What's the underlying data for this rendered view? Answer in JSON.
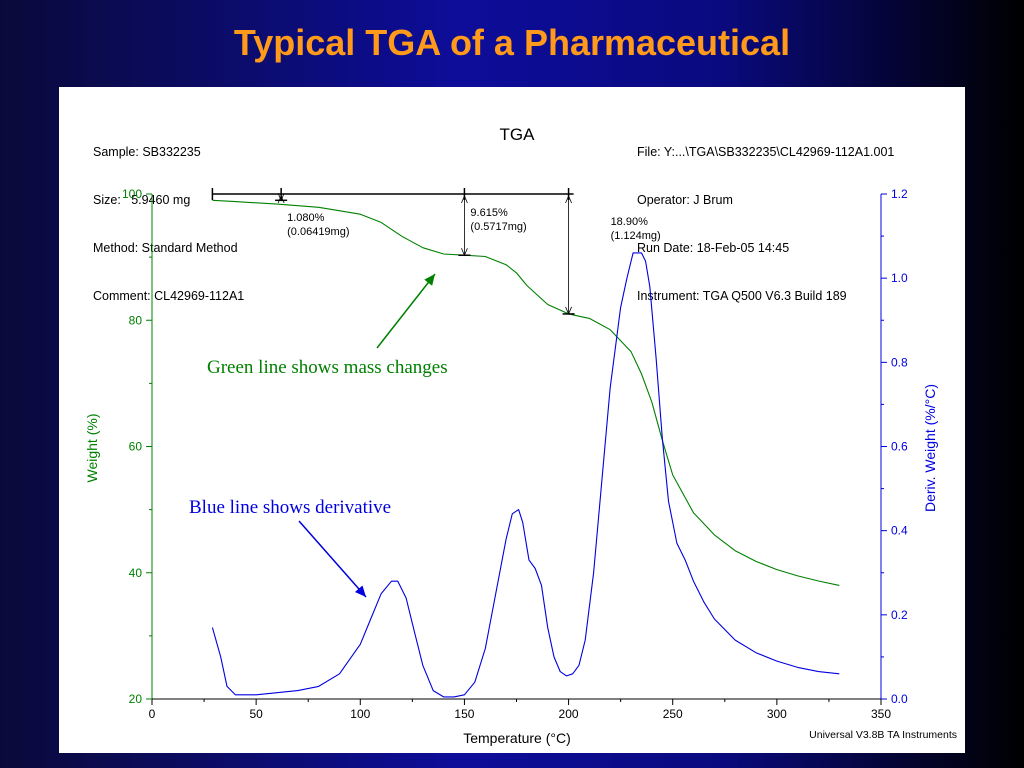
{
  "slide_title": "Typical TGA of a Pharmaceutical",
  "header_left": [
    "Sample: SB332235",
    "Size:   5.9460 mg",
    "Method: Standard Method",
    "Comment: CL42969-112A1"
  ],
  "header_right": [
    "File: Y:...\\TGA\\SB332235\\CL42969-112A1.001",
    "Operator: J Brum",
    "Run Date: 18-Feb-05 14:45",
    "Instrument: TGA Q500 V6.3 Build 189"
  ],
  "footer": "Universal V3.8B TA Instruments",
  "annotations": {
    "green": "Green line shows mass changes",
    "blue": "Blue line shows derivative"
  },
  "colors": {
    "weight": "#008000",
    "derivative": "#0000e0",
    "title": "#ff9a1a"
  },
  "chart_data": {
    "type": "line",
    "title": "TGA",
    "xlabel": "Temperature (°C)",
    "ylabel": "Weight (%)",
    "y2label": "Deriv. Weight (%/°C)",
    "xlim": [
      0,
      350
    ],
    "ylim": [
      20,
      100
    ],
    "y2lim": [
      0.0,
      1.2
    ],
    "xticks": [
      "0",
      "50",
      "100",
      "150",
      "200",
      "250",
      "300",
      "350"
    ],
    "yticks": [
      "20",
      "40",
      "60",
      "80",
      "100"
    ],
    "y2ticks": [
      "0.0",
      "0.2",
      "0.4",
      "0.6",
      "0.8",
      "1.0",
      "1.2"
    ],
    "series": [
      {
        "axis": "left",
        "color": "#008000",
        "x": [
          29,
          40,
          60,
          80,
          100,
          110,
          120,
          130,
          140,
          150,
          160,
          170,
          175,
          180,
          190,
          200,
          210,
          220,
          230,
          235,
          240,
          245,
          250,
          260,
          270,
          280,
          290,
          300,
          310,
          320,
          330
        ],
        "y": [
          99.0,
          98.8,
          98.4,
          97.9,
          96.8,
          95.5,
          93.3,
          91.5,
          90.5,
          90.3,
          90.1,
          88.8,
          87.5,
          85.5,
          82.5,
          81.0,
          80.3,
          78.5,
          75.0,
          71.5,
          67.0,
          61.0,
          55.5,
          49.5,
          46.0,
          43.5,
          41.8,
          40.5,
          39.5,
          38.7,
          38.0
        ]
      },
      {
        "axis": "right",
        "color": "#0000e0",
        "x": [
          29,
          33,
          36,
          40,
          50,
          60,
          70,
          80,
          90,
          100,
          105,
          110,
          115,
          118,
          122,
          126,
          130,
          135,
          140,
          145,
          150,
          155,
          160,
          165,
          170,
          173,
          176,
          178,
          181,
          184,
          187,
          190,
          193,
          196,
          199,
          202,
          205,
          208,
          212,
          216,
          220,
          225,
          228,
          231,
          233,
          235,
          237,
          239,
          242,
          245,
          248,
          252,
          256,
          260,
          265,
          270,
          280,
          290,
          300,
          310,
          320,
          330
        ],
        "y": [
          0.17,
          0.1,
          0.03,
          0.01,
          0.01,
          0.015,
          0.02,
          0.03,
          0.06,
          0.13,
          0.19,
          0.25,
          0.28,
          0.28,
          0.24,
          0.16,
          0.08,
          0.02,
          0.005,
          0.005,
          0.01,
          0.04,
          0.12,
          0.25,
          0.38,
          0.44,
          0.45,
          0.42,
          0.33,
          0.31,
          0.27,
          0.17,
          0.1,
          0.065,
          0.055,
          0.06,
          0.08,
          0.14,
          0.3,
          0.52,
          0.74,
          0.93,
          1.0,
          1.06,
          1.06,
          1.06,
          1.04,
          0.98,
          0.81,
          0.62,
          0.47,
          0.37,
          0.33,
          0.28,
          0.23,
          0.19,
          0.14,
          0.11,
          0.09,
          0.075,
          0.065,
          0.06
        ]
      }
    ],
    "step_labels": [
      {
        "line1": "1.080%",
        "line2": "(0.06419mg)"
      },
      {
        "line1": "9.615%",
        "line2": "(0.5717mg)"
      },
      {
        "line1": "18.90%",
        "line2": "(1.124mg)"
      }
    ]
  }
}
